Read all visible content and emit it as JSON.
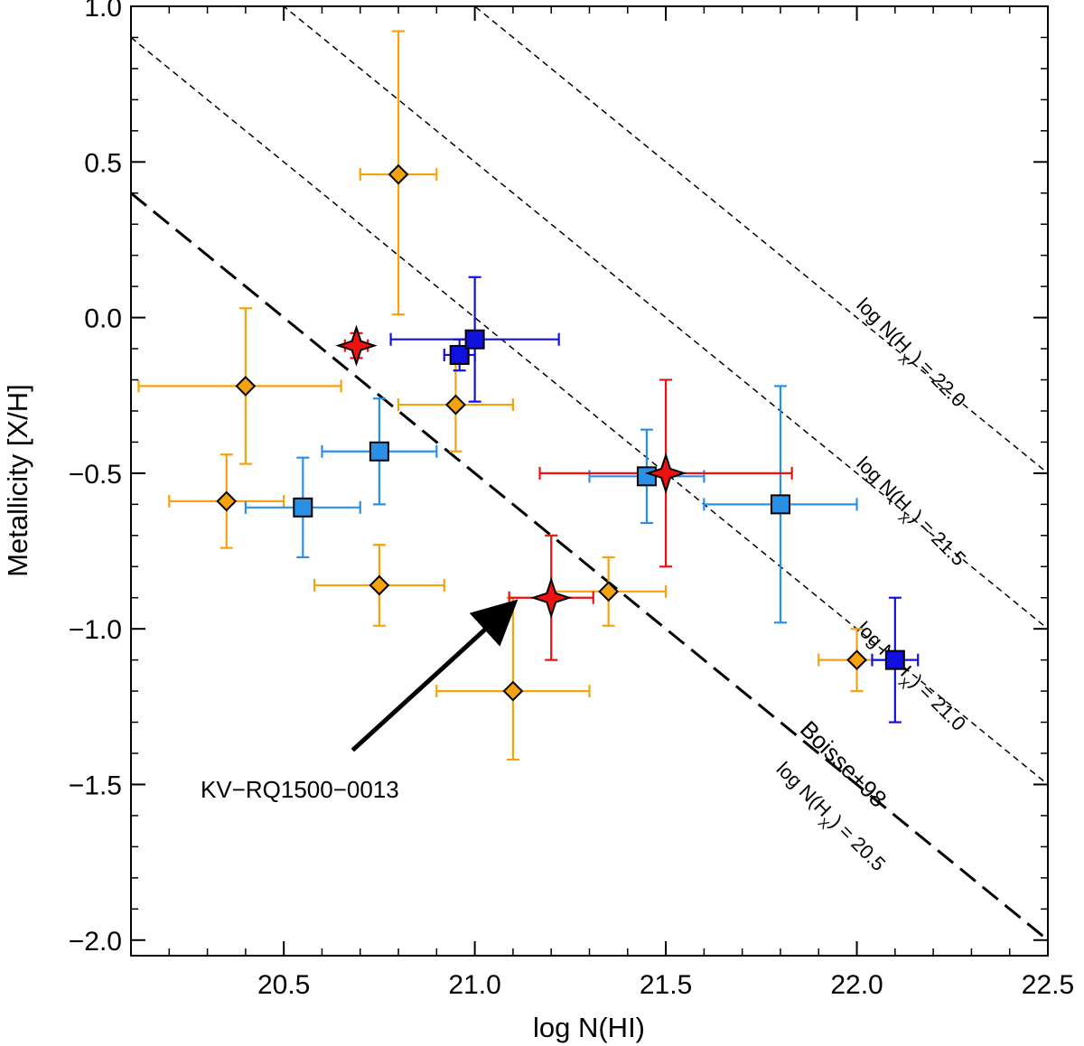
{
  "chart_data": {
    "type": "scatter",
    "title": "",
    "xlabel": "log N(HI)",
    "ylabel": "Metallicity  [X/H]",
    "xlim": [
      20.1,
      22.5
    ],
    "ylim": [
      -2.05,
      1.0
    ],
    "x_ticks": [
      {
        "value": 20.5,
        "label": "20.5"
      },
      {
        "value": 21.0,
        "label": "21.0"
      },
      {
        "value": 21.5,
        "label": "21.5"
      },
      {
        "value": 22.0,
        "label": "22.0"
      },
      {
        "value": 22.5,
        "label": "22.5"
      }
    ],
    "y_ticks": [
      {
        "value": 1.0,
        "label": "1.0"
      },
      {
        "value": 0.5,
        "label": "0.5"
      },
      {
        "value": 0.0,
        "label": "0.0"
      },
      {
        "value": -0.5,
        "label": "−0.5"
      },
      {
        "value": -1.0,
        "label": "−1.0"
      },
      {
        "value": -1.5,
        "label": "−1.5"
      },
      {
        "value": -2.0,
        "label": "−2.0"
      }
    ],
    "x_minor_step": 0.1,
    "y_minor_step": 0.1,
    "colors": {
      "orange": "#F5A20F",
      "lightblue": "#2B8FE6",
      "darkblue": "#1111DD",
      "red": "#EE1111"
    },
    "series": [
      {
        "name": "orange-diamonds",
        "marker": "diamond",
        "color": "#F5A20F",
        "points": [
          {
            "x": 20.35,
            "y": -0.59,
            "xerr": [
              0.15,
              0.15
            ],
            "yerr": [
              0.15,
              0.15
            ]
          },
          {
            "x": 20.4,
            "y": -0.22,
            "xerr": [
              0.28,
              0.25
            ],
            "yerr": [
              0.25,
              0.25
            ]
          },
          {
            "x": 20.75,
            "y": -0.86,
            "xerr": [
              0.17,
              0.17
            ],
            "yerr": [
              0.13,
              0.13
            ]
          },
          {
            "x": 20.8,
            "y": 0.46,
            "xerr": [
              0.1,
              0.1
            ],
            "yerr": [
              0.45,
              0.46
            ]
          },
          {
            "x": 20.95,
            "y": -0.28,
            "xerr": [
              0.15,
              0.15
            ],
            "yerr": [
              0.15,
              0.15
            ]
          },
          {
            "x": 21.1,
            "y": -1.2,
            "xerr": [
              0.2,
              0.2
            ],
            "yerr": [
              0.22,
              0.3
            ]
          },
          {
            "x": 21.35,
            "y": -0.88,
            "xerr": [
              0.15,
              0.15
            ],
            "yerr": [
              0.11,
              0.11
            ]
          },
          {
            "x": 22.0,
            "y": -1.1,
            "xerr": [
              0.1,
              0.1
            ],
            "yerr": [
              0.1,
              0.1
            ]
          }
        ]
      },
      {
        "name": "light-blue-squares",
        "marker": "square",
        "color": "#2B8FE6",
        "points": [
          {
            "x": 20.55,
            "y": -0.61,
            "xerr": [
              0.15,
              0.15
            ],
            "yerr": [
              0.16,
              0.16
            ]
          },
          {
            "x": 20.75,
            "y": -0.43,
            "xerr": [
              0.15,
              0.15
            ],
            "yerr": [
              0.17,
              0.17
            ]
          },
          {
            "x": 21.45,
            "y": -0.51,
            "xerr": [
              0.15,
              0.15
            ],
            "yerr": [
              0.15,
              0.15
            ]
          },
          {
            "x": 21.8,
            "y": -0.6,
            "xerr": [
              0.2,
              0.2
            ],
            "yerr": [
              0.38,
              0.38
            ]
          }
        ]
      },
      {
        "name": "dark-blue-squares",
        "marker": "square",
        "color": "#1111DD",
        "points": [
          {
            "x": 20.96,
            "y": -0.12,
            "xerr": [
              0.04,
              0.04
            ],
            "yerr": [
              0.05,
              0.05
            ]
          },
          {
            "x": 21.0,
            "y": -0.07,
            "xerr": [
              0.22,
              0.22
            ],
            "yerr": [
              0.2,
              0.2
            ]
          },
          {
            "x": 22.1,
            "y": -1.1,
            "xerr": [
              0.06,
              0.06
            ],
            "yerr": [
              0.2,
              0.2
            ]
          }
        ]
      },
      {
        "name": "red-stars",
        "marker": "star",
        "color": "#EE1111",
        "points": [
          {
            "x": 20.69,
            "y": -0.09,
            "xerr": [
              0.03,
              0.03
            ],
            "yerr": [
              0.04,
              0.04
            ]
          },
          {
            "x": 21.2,
            "y": -0.9,
            "xerr": [
              0.11,
              0.11
            ],
            "yerr": [
              0.2,
              0.2
            ]
          },
          {
            "x": 21.5,
            "y": -0.5,
            "xerr": [
              0.33,
              0.33
            ],
            "yerr": [
              0.3,
              0.3
            ]
          }
        ]
      }
    ],
    "reference_lines": [
      {
        "name": "boisse",
        "slope": -1,
        "intercept": 20.5,
        "style": "long-dash",
        "label": "Boisse+98",
        "sublabel": "log N(H",
        "subscript": "X",
        "suffix": ") = 20.5"
      },
      {
        "name": "h21",
        "slope": -1,
        "intercept": 21.0,
        "style": "short-dash",
        "label": "log N(H",
        "subscript": "X",
        "suffix": ") = 21.0"
      },
      {
        "name": "h215",
        "slope": -1,
        "intercept": 21.5,
        "style": "short-dash",
        "label": "log N(H",
        "subscript": "X",
        "suffix": ") = 21.5"
      },
      {
        "name": "h22",
        "slope": -1,
        "intercept": 22.0,
        "style": "short-dash",
        "label": "log N(H",
        "subscript": "X",
        "suffix": ") = 22.0"
      }
    ],
    "annotation": {
      "text": "KV−RQ1500−0013",
      "points_to": {
        "x": 21.1,
        "y": -0.92
      },
      "arrow_from": {
        "x": 20.68,
        "y": -1.39
      }
    }
  }
}
